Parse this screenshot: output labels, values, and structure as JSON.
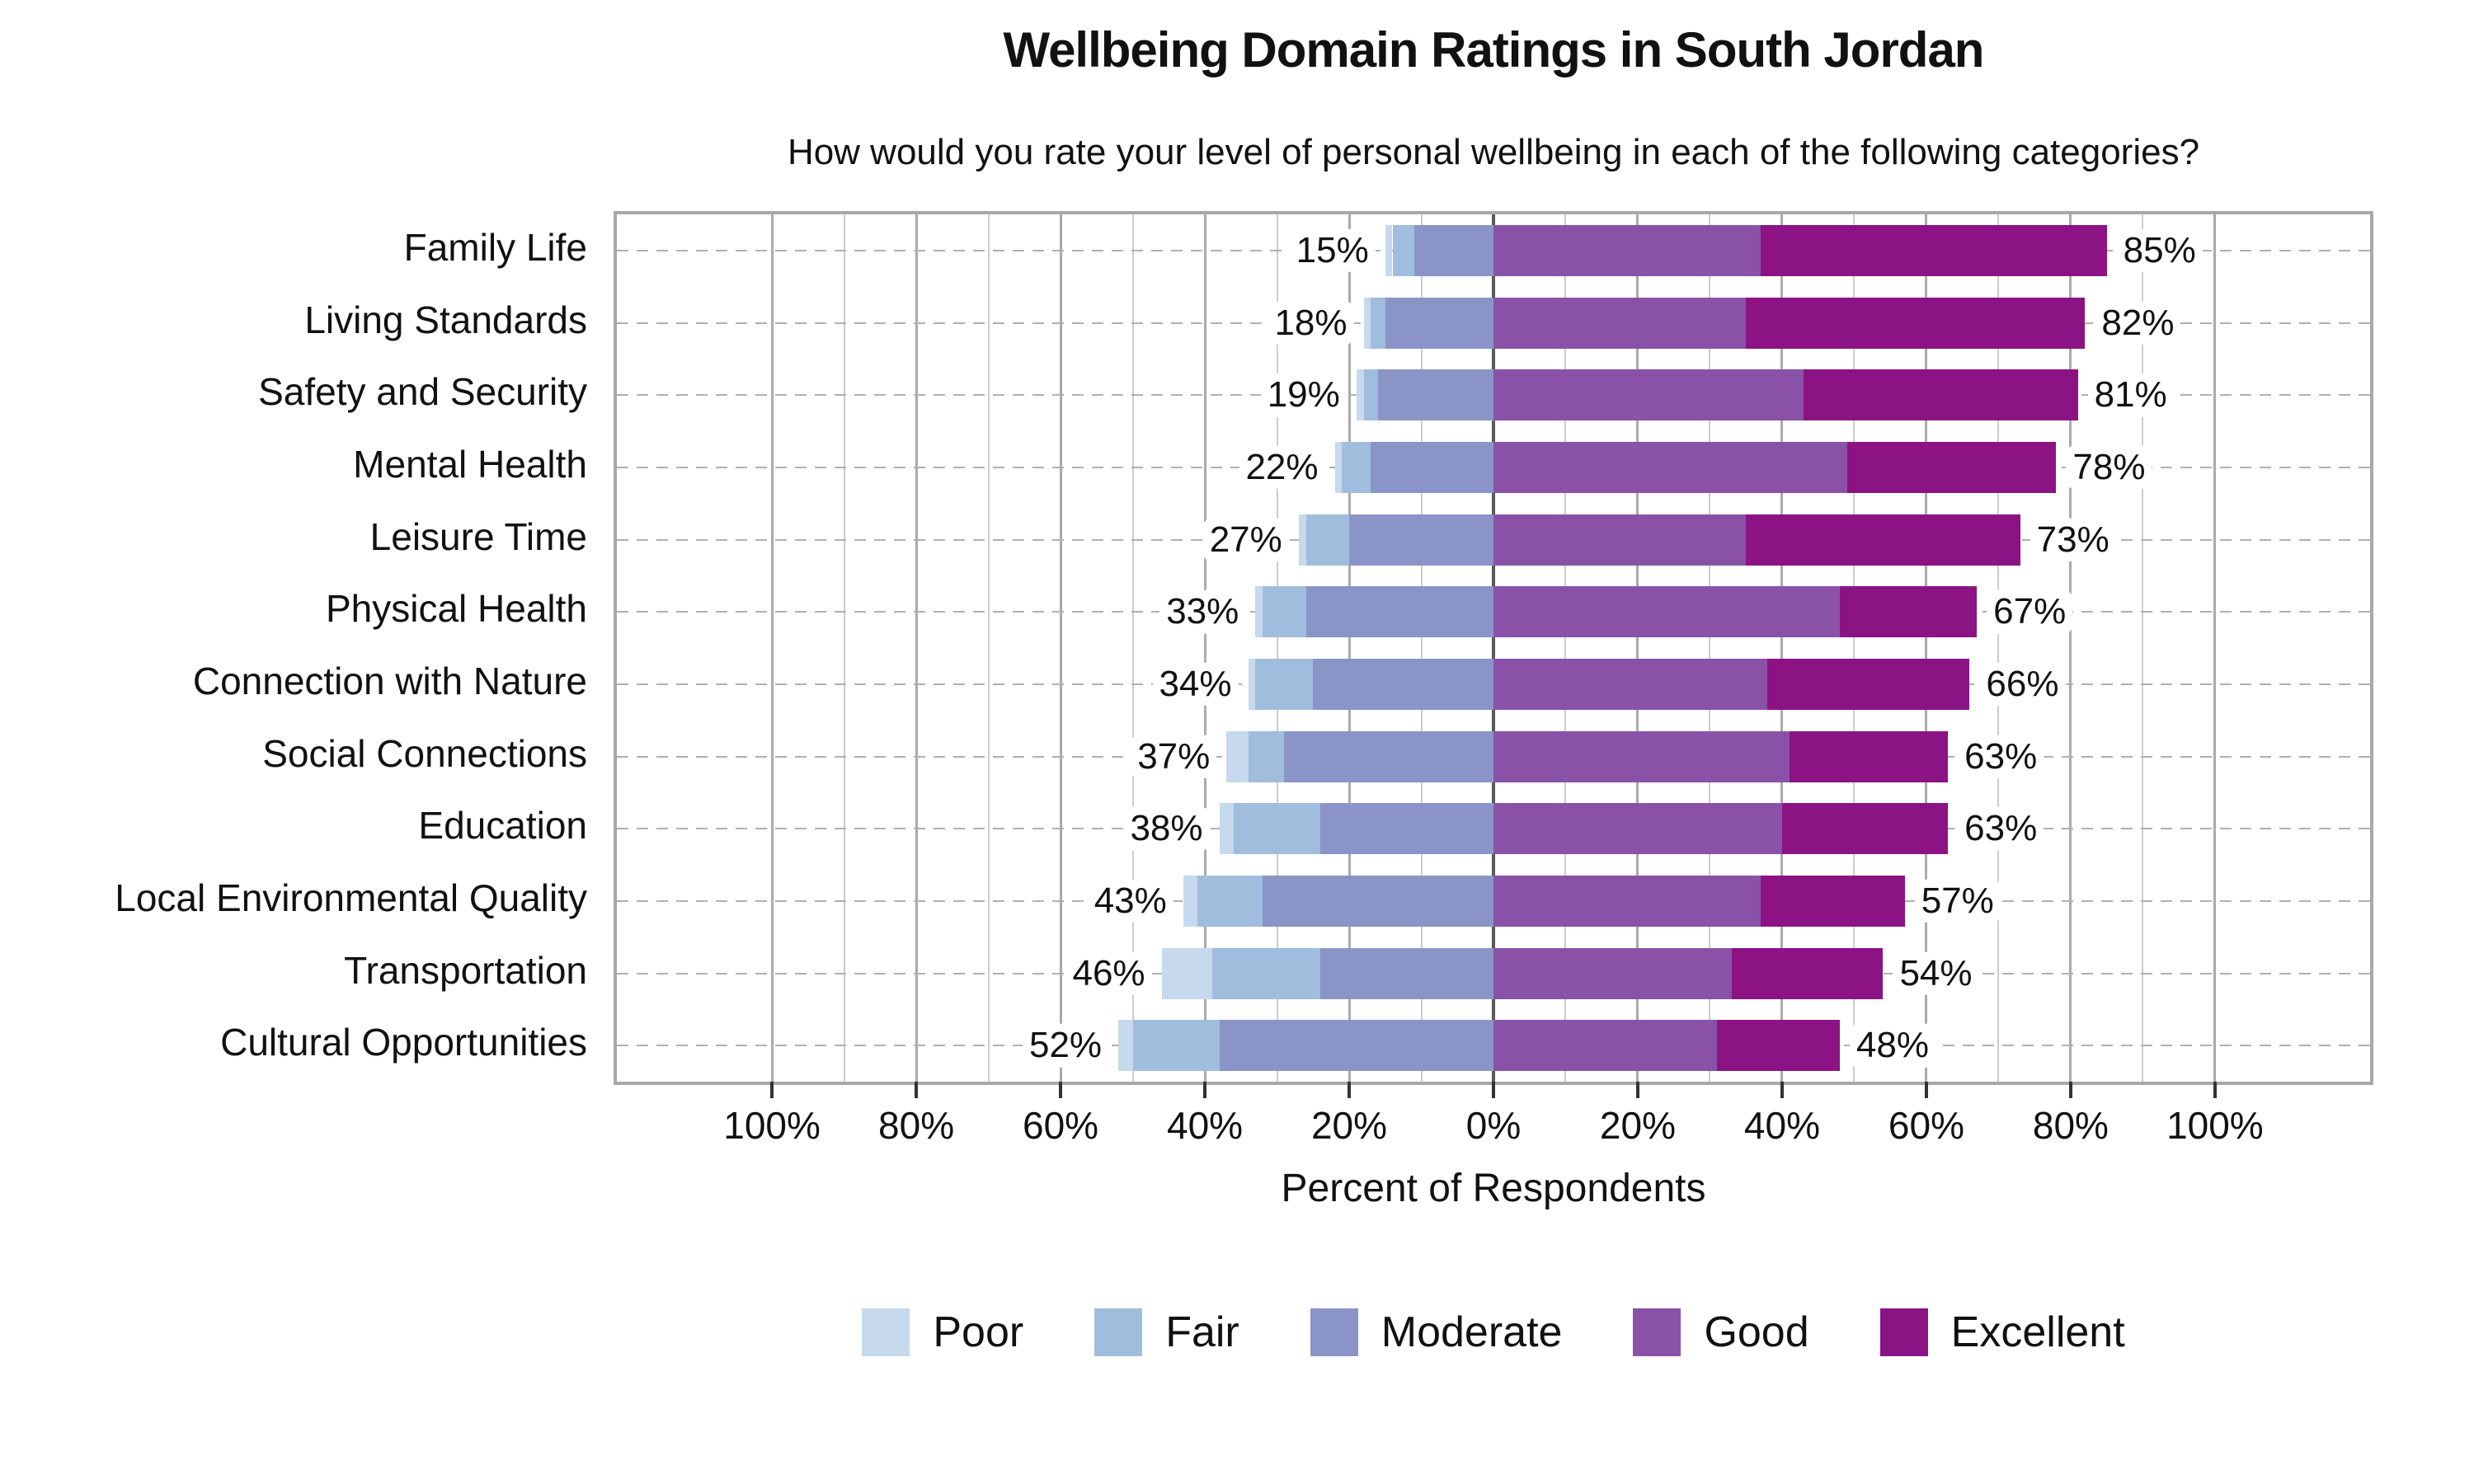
{
  "title": "Wellbeing Domain Ratings in South Jordan",
  "subtitle": "How would you rate your level of personal wellbeing in each of the following categories?",
  "xlabel": "Percent of Respondents",
  "colors": {
    "poor": "#c7d9ec",
    "fair": "#a0bddd",
    "moderate": "#8b94c7",
    "good": "#8a52a6",
    "excellent": "#8b1384",
    "grid_minor": "#cccccc",
    "grid_major": "#aaaaaa",
    "zero_line": "#595959",
    "row_guide": "#b0b0b0",
    "plot_border": "#a8a8a8",
    "tick": "#333333",
    "text": "#111111"
  },
  "chart_data": {
    "type": "bar",
    "variant": "diverging-stacked-horizontal",
    "title": "Wellbeing Domain Ratings in South Jordan",
    "subtitle": "How would you rate your level of personal wellbeing in each of the following categories?",
    "xlabel": "Percent of Respondents",
    "categories": [
      "Family Life",
      "Living Standards",
      "Safety and Security",
      "Mental Health",
      "Leisure Time",
      "Physical Health",
      "Connection with Nature",
      "Social Connections",
      "Education",
      "Local Environmental Quality",
      "Transportation",
      "Cultural Opportunities"
    ],
    "series": [
      {
        "name": "Poor",
        "color": "#c7d9ec",
        "values": [
          1,
          1,
          1,
          1,
          1,
          1,
          1,
          3,
          2,
          2,
          7,
          2
        ]
      },
      {
        "name": "Fair",
        "color": "#a0bddd",
        "values": [
          3,
          2,
          2,
          4,
          6,
          6,
          8,
          5,
          12,
          9,
          15,
          12
        ]
      },
      {
        "name": "Moderate",
        "color": "#8b94c7",
        "values": [
          11,
          15,
          16,
          17,
          20,
          26,
          25,
          29,
          24,
          32,
          24,
          38
        ]
      },
      {
        "name": "Good",
        "color": "#8a52a6",
        "values": [
          37,
          35,
          43,
          49,
          35,
          48,
          38,
          41,
          40,
          37,
          33,
          31
        ]
      },
      {
        "name": "Excellent",
        "color": "#8b1384",
        "values": [
          48,
          47,
          38,
          29,
          38,
          19,
          28,
          22,
          23,
          20,
          21,
          17
        ]
      }
    ],
    "negative_series": [
      "Poor",
      "Fair",
      "Moderate"
    ],
    "left_total_labels": [
      "15%",
      "18%",
      "19%",
      "22%",
      "27%",
      "33%",
      "34%",
      "37%",
      "38%",
      "43%",
      "46%",
      "52%"
    ],
    "right_total_labels": [
      "85%",
      "82%",
      "81%",
      "78%",
      "73%",
      "67%",
      "66%",
      "63%",
      "63%",
      "57%",
      "54%",
      "48%"
    ],
    "x_tick_values": [
      -100,
      -80,
      -60,
      -40,
      -20,
      0,
      20,
      40,
      60,
      80,
      100
    ],
    "x_tick_labels": [
      "100%",
      "80%",
      "60%",
      "40%",
      "20%",
      "0%",
      "20%",
      "40%",
      "60%",
      "80%",
      "100%"
    ],
    "xlim": [
      -121.5,
      121.5
    ],
    "grid": {
      "minor_step": 10,
      "major_step": 20,
      "extent": 100
    },
    "legend": [
      "Poor",
      "Fair",
      "Moderate",
      "Good",
      "Excellent"
    ],
    "legend_position": "bottom-center"
  }
}
